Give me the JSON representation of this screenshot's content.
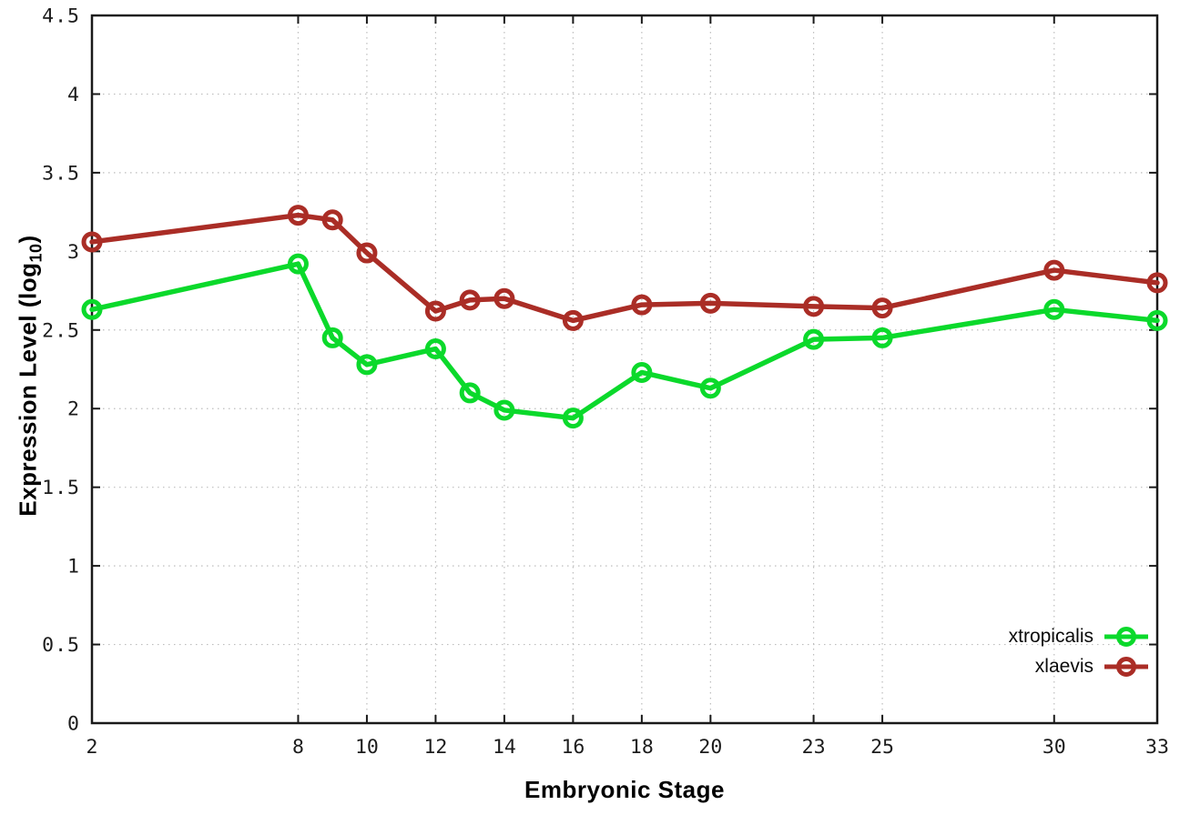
{
  "figure": {
    "background": "#ffffff",
    "y_axis_title": {
      "pre": "Expression Level (log",
      "sub": "10",
      "post": ")"
    },
    "x_axis_title": "Embryonic Stage"
  },
  "chart_data": {
    "type": "line",
    "title": "",
    "xlabel": "Embryonic Stage",
    "ylabel": "Expression Level (log10)",
    "xlim": [
      2,
      33
    ],
    "ylim": [
      0,
      4.5
    ],
    "grid": true,
    "grid_style": "dotted",
    "legend_position": "bottom-right-inside",
    "x": [
      2,
      8,
      9,
      10,
      12,
      13,
      14,
      16,
      18,
      20,
      23,
      25,
      30,
      33
    ],
    "x_tick_values": [
      2,
      8,
      10,
      12,
      14,
      16,
      18,
      20,
      23,
      25,
      30,
      33
    ],
    "x_tick_labels": [
      "2",
      "8",
      "10",
      "12",
      "14",
      "16",
      "18",
      "20",
      "23",
      "25",
      "30",
      "33"
    ],
    "y_tick_values": [
      0,
      0.5,
      1,
      1.5,
      2,
      2.5,
      3,
      3.5,
      4,
      4.5
    ],
    "y_tick_labels": [
      "0",
      "0.5",
      "1",
      "1.5",
      "2",
      "2.5",
      "3",
      "3.5",
      "4",
      "4.5"
    ],
    "series": [
      {
        "name": "xtropicalis",
        "color": "#0bd92b",
        "marker": "open-circle",
        "values": [
          2.63,
          2.92,
          2.45,
          2.28,
          2.38,
          2.1,
          1.99,
          1.94,
          2.23,
          2.13,
          2.44,
          2.45,
          2.63,
          2.56
        ]
      },
      {
        "name": "xlaevis",
        "color": "#aa2d26",
        "marker": "open-circle",
        "values": [
          3.06,
          3.23,
          3.2,
          2.99,
          2.62,
          2.69,
          2.7,
          2.56,
          2.66,
          2.67,
          2.65,
          2.64,
          2.88,
          2.8
        ]
      }
    ]
  },
  "legend": {
    "items": [
      {
        "label": "xtropicalis"
      },
      {
        "label": "xlaevis"
      }
    ]
  }
}
